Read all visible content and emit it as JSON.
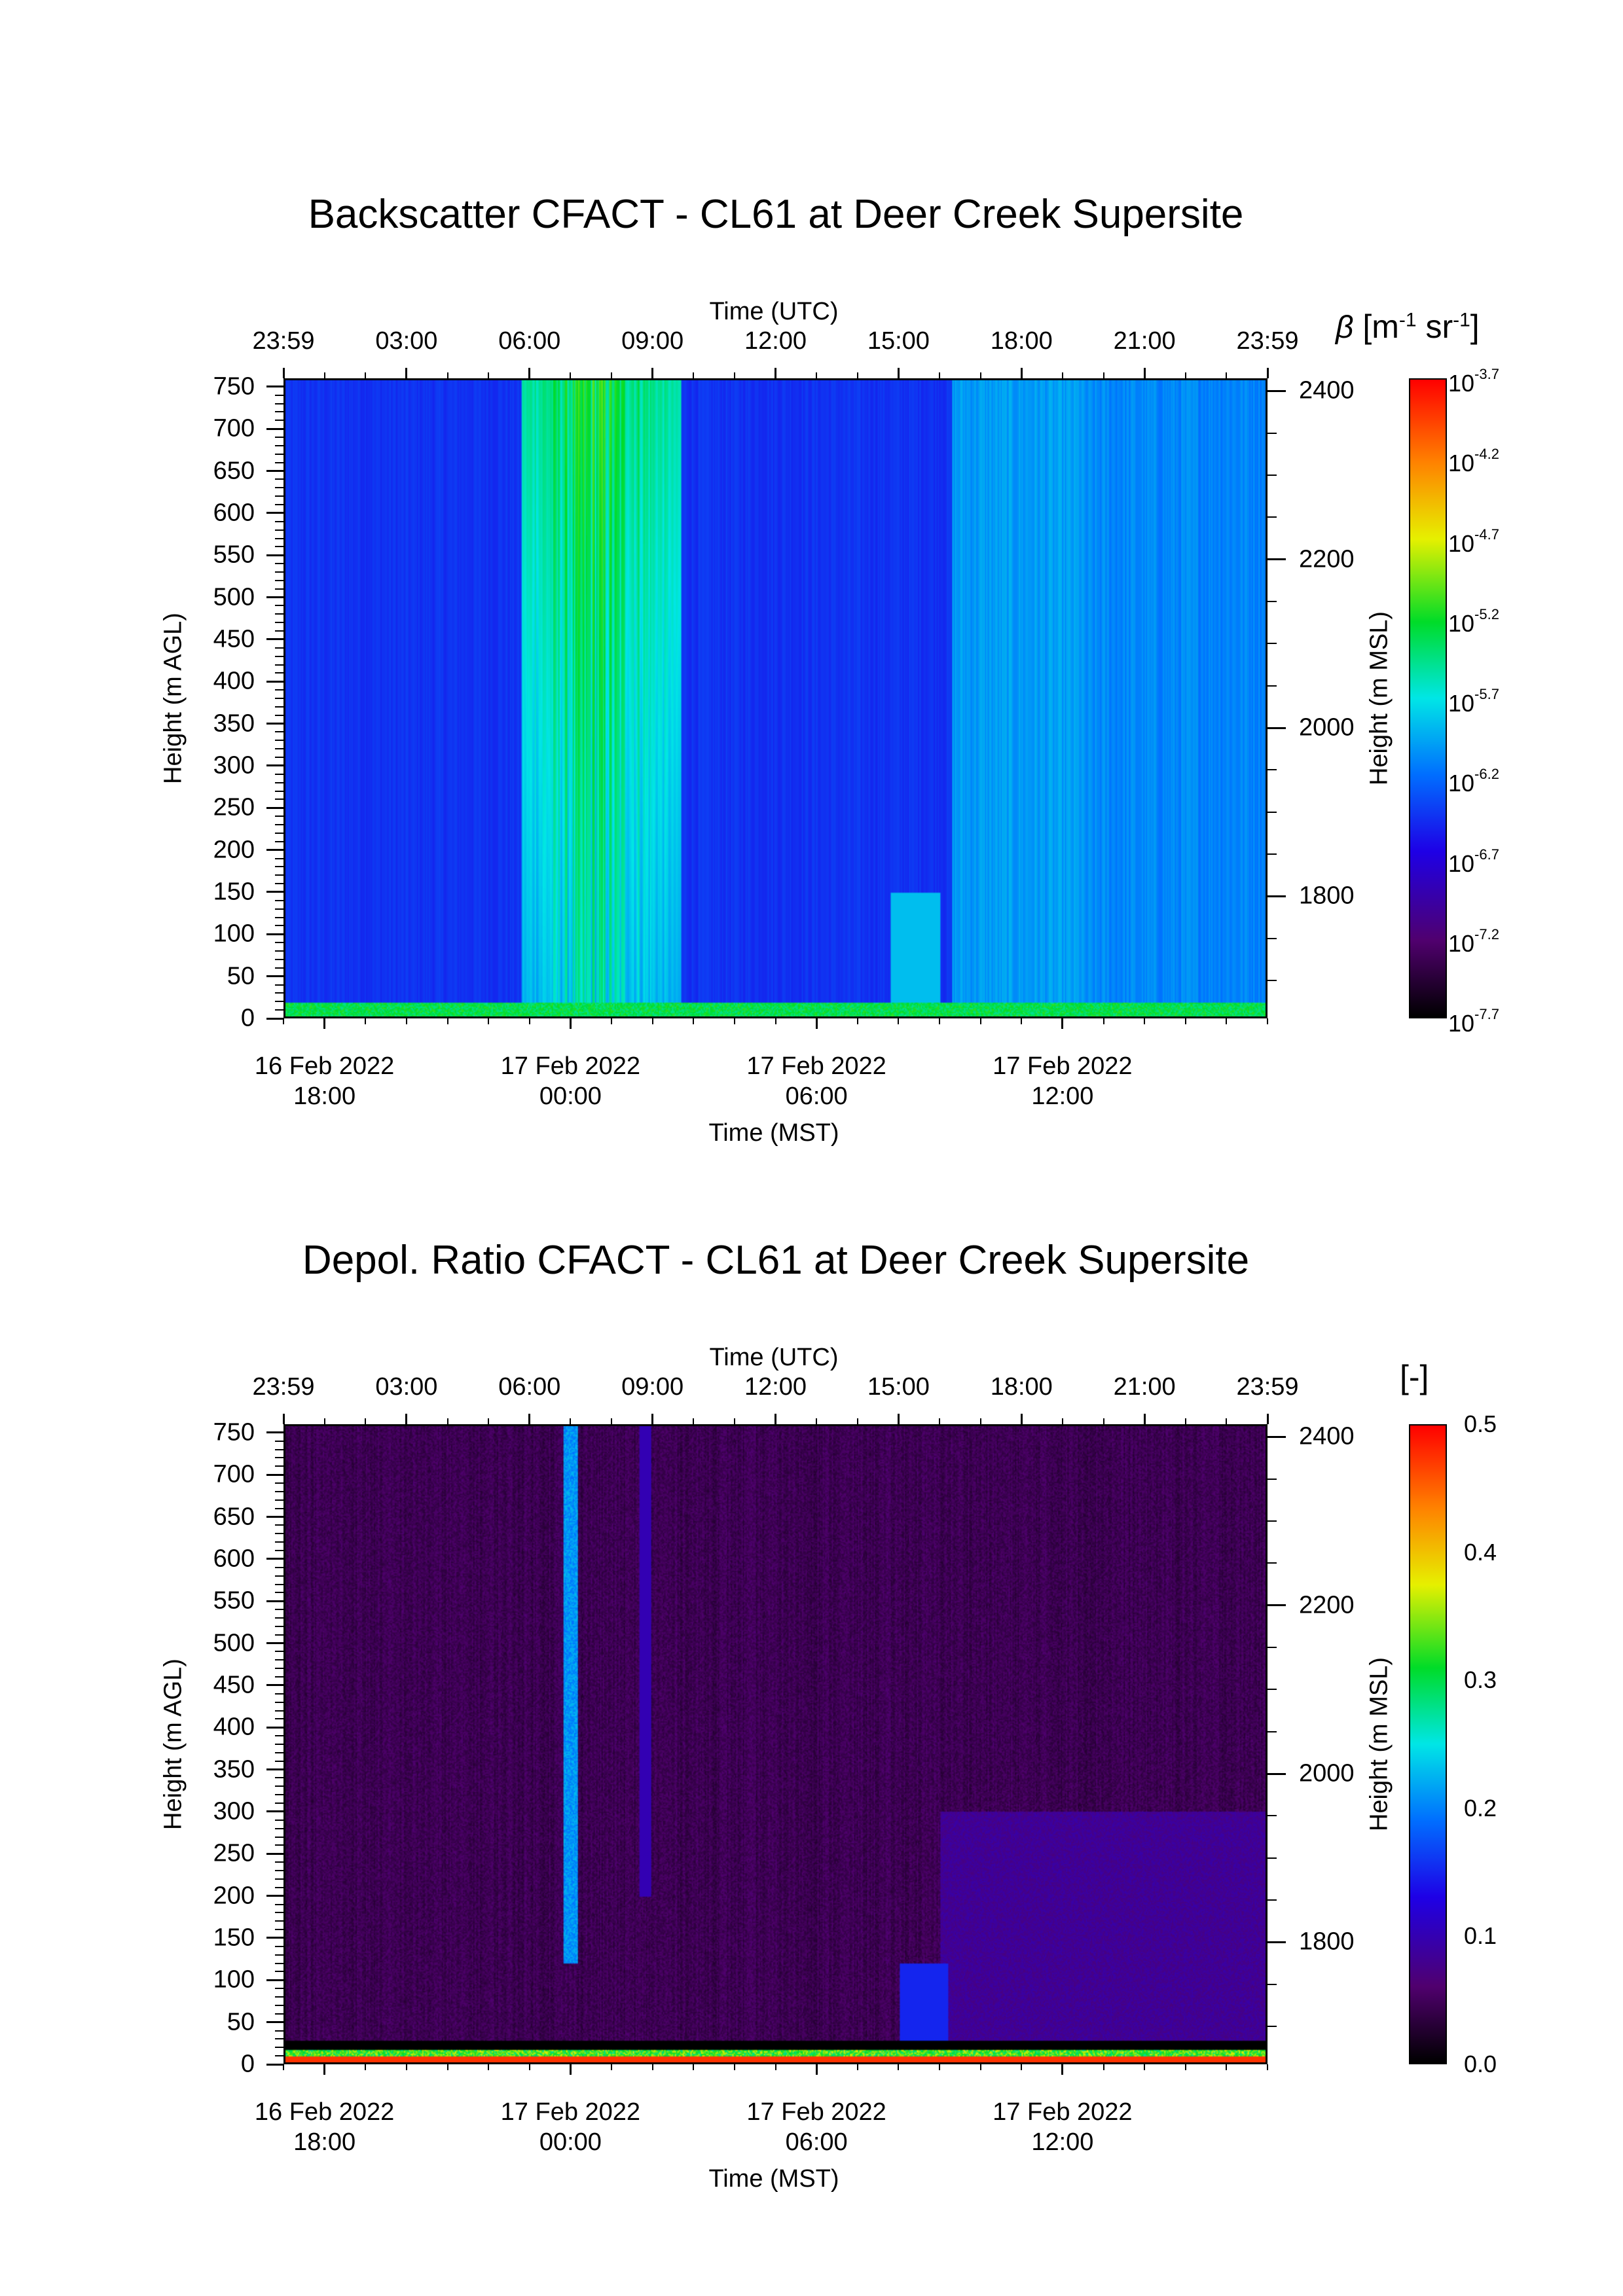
{
  "chart_data": [
    {
      "type": "heatmap",
      "title": "Backscatter CFACT - CL61 at Deer Creek Supersite",
      "top_axis_label": "Time (UTC)",
      "top_ticks": [
        "23:59",
        "03:00",
        "06:00",
        "09:00",
        "12:00",
        "15:00",
        "18:00",
        "21:00",
        "23:59"
      ],
      "bottom_axis_label": "Time (MST)",
      "bottom_ticks": [
        {
          "date": "16 Feb 2022",
          "time": "18:00"
        },
        {
          "date": "17 Feb 2022",
          "time": "00:00"
        },
        {
          "date": "17 Feb 2022",
          "time": "06:00"
        },
        {
          "date": "17 Feb 2022",
          "time": "12:00"
        }
      ],
      "ylabel": "Height (m AGL)",
      "yticks": [
        0,
        50,
        100,
        150,
        200,
        250,
        300,
        350,
        400,
        450,
        500,
        550,
        600,
        650,
        700,
        750
      ],
      "ylim": [
        0,
        760
      ],
      "ylabel_right": "Height (m MSL)",
      "yticks_right": [
        1800,
        2000,
        2200,
        2400
      ],
      "colorbar": {
        "label_symbol": "β",
        "label_unit": "[m",
        "label_exp1": "-1",
        "label_unit2": " sr",
        "label_exp2": "-1",
        "label_close": "]",
        "scale": "log",
        "base": "10",
        "tick_exponents": [
          "-3.7",
          "-4.2",
          "-4.7",
          "-5.2",
          "-5.7",
          "-6.2",
          "-6.7",
          "-7.2",
          "-7.7"
        ],
        "range_exponent": [
          -7.7,
          -3.7
        ]
      }
    },
    {
      "type": "heatmap",
      "title": "Depol. Ratio CFACT - CL61 at Deer Creek Supersite",
      "top_axis_label": "Time (UTC)",
      "top_ticks": [
        "23:59",
        "03:00",
        "06:00",
        "09:00",
        "12:00",
        "15:00",
        "18:00",
        "21:00",
        "23:59"
      ],
      "bottom_axis_label": "Time (MST)",
      "bottom_ticks": [
        {
          "date": "16 Feb 2022",
          "time": "18:00"
        },
        {
          "date": "17 Feb 2022",
          "time": "00:00"
        },
        {
          "date": "17 Feb 2022",
          "time": "06:00"
        },
        {
          "date": "17 Feb 2022",
          "time": "12:00"
        }
      ],
      "ylabel": "Height (m AGL)",
      "yticks": [
        0,
        50,
        100,
        150,
        200,
        250,
        300,
        350,
        400,
        450,
        500,
        550,
        600,
        650,
        700,
        750
      ],
      "ylim": [
        0,
        760
      ],
      "ylabel_right": "Height (m MSL)",
      "yticks_right": [
        1800,
        2000,
        2200,
        2400
      ],
      "colorbar": {
        "label": "[-]",
        "scale": "linear",
        "ticks": [
          "0.5",
          "0.4",
          "0.3",
          "0.2",
          "0.1",
          "0.0"
        ],
        "range": [
          0.0,
          0.5
        ]
      }
    }
  ]
}
